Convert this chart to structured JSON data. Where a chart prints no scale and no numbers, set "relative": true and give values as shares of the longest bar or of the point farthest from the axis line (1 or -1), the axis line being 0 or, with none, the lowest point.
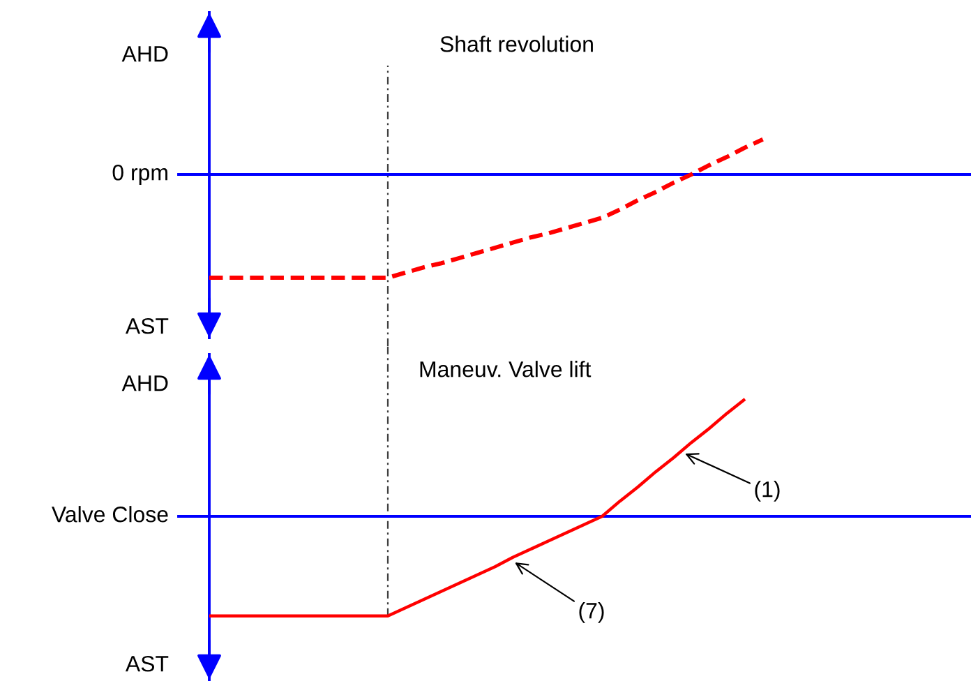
{
  "chart_data": [
    {
      "type": "line",
      "title": "Shaft revolution",
      "relative": true,
      "line_style": "dashed",
      "categories": [
        null,
        null,
        null,
        null,
        null,
        null,
        null,
        null,
        null,
        null,
        null,
        null,
        null,
        null,
        null,
        null,
        null,
        null,
        null,
        null,
        null,
        null,
        null,
        null,
        null,
        null,
        null,
        null,
        null,
        null,
        null,
        null,
        null,
        null,
        null,
        null,
        null,
        null,
        null,
        null,
        null,
        null,
        null
      ],
      "series": [
        {
          "color": "#ff0000",
          "values": [
            -1,
            -1,
            -1,
            -1,
            -1,
            -1,
            -1,
            -1,
            -1,
            -1,
            -1,
            -0.95,
            -0.9,
            -0.86,
            -0.81,
            -0.76,
            -0.71,
            -0.66,
            -0.61,
            -0.57,
            -0.52,
            -0.47,
            -0.42,
            -0.34,
            -0.25,
            -0.17,
            -0.08,
            0,
            0.09,
            0.17,
            0.26,
            0.34,
            null,
            null,
            null,
            null,
            null,
            null,
            null,
            null,
            null,
            null,
            null
          ]
        }
      ],
      "annotations": [
        "AHD",
        "AST"
      ],
      "ref_lines": [
        {
          "axis": "y",
          "value": 0,
          "label": "0 rpm",
          "color": "#0000ff"
        }
      ]
    },
    {
      "type": "line",
      "title": "Maneuv. Valve lift",
      "relative": true,
      "line_style": "solid",
      "categories": [
        null,
        null,
        null,
        null,
        null,
        null,
        null,
        null,
        null,
        null,
        null,
        null,
        null,
        null,
        null,
        null,
        null,
        null,
        null,
        null,
        null,
        null,
        null,
        null,
        null,
        null,
        null,
        null,
        null,
        null,
        null,
        null,
        null,
        null,
        null,
        null,
        null,
        null,
        null,
        null,
        null,
        null,
        null
      ],
      "series": [
        {
          "color": "#ff0000",
          "values": [
            -0.85,
            -0.85,
            -0.85,
            -0.85,
            -0.85,
            -0.85,
            -0.85,
            -0.85,
            -0.85,
            -0.85,
            -0.85,
            -0.78,
            -0.71,
            -0.64,
            -0.57,
            -0.5,
            -0.43,
            -0.35,
            -0.28,
            -0.21,
            -0.14,
            -0.07,
            0,
            0.13,
            0.25,
            0.38,
            0.5,
            0.63,
            0.75,
            0.88,
            1,
            null,
            null,
            null,
            null,
            null,
            null,
            null,
            null,
            null,
            null,
            null,
            null
          ]
        }
      ],
      "annotations": [
        "AHD",
        "(1)",
        "(7)",
        "AST"
      ],
      "ref_lines": [
        {
          "axis": "y",
          "value": 0,
          "label": "Valve Close",
          "color": "#0000ff"
        }
      ]
    }
  ]
}
